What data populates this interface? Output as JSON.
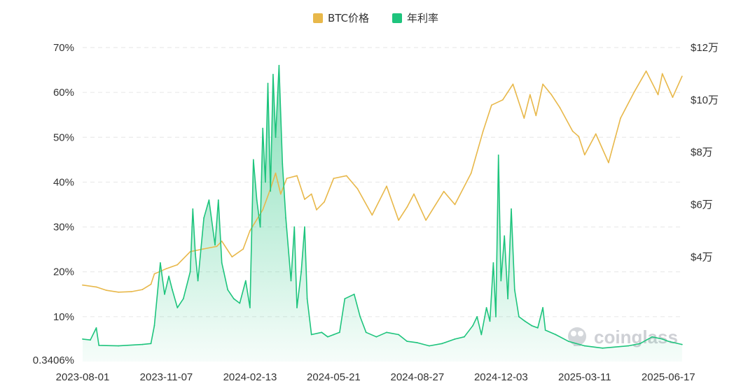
{
  "chart_data": {
    "type": "line",
    "legend": {
      "position": "top",
      "items": [
        {
          "name": "BTC价格",
          "color": "#e8b84a"
        },
        {
          "name": "年利率",
          "color": "#1ec47d"
        }
      ]
    },
    "x_tick_labels": [
      "2023-08-01",
      "2023-11-07",
      "2024-02-13",
      "2024-05-21",
      "2024-08-27",
      "2024-12-03",
      "2025-03-11",
      "2025-06-17"
    ],
    "x_range": [
      "2023-08-01",
      "2025-07-04"
    ],
    "y_left": {
      "range": [
        0,
        70
      ],
      "tick_labels": [
        "0.3406%",
        "10%",
        "20%",
        "30%",
        "40%",
        "50%",
        "60%",
        "70%"
      ],
      "tick_values": [
        0.3406,
        10,
        20,
        30,
        40,
        50,
        60,
        70
      ]
    },
    "y_right": {
      "range": [
        0,
        120000
      ],
      "tick_labels": [
        "$4万",
        "$6万",
        "$8万",
        "$10万",
        "$12万"
      ],
      "tick_values": [
        40000,
        60000,
        80000,
        100000,
        120000
      ]
    },
    "grid": "horizontal dashed",
    "series": [
      {
        "name": "BTC价格",
        "axis": "right",
        "color": "#e8b84a",
        "points": [
          [
            "2023-08-01",
            29200
          ],
          [
            "2023-08-17",
            28500
          ],
          [
            "2023-08-29",
            27200
          ],
          [
            "2023-09-12",
            26500
          ],
          [
            "2023-09-27",
            26700
          ],
          [
            "2023-10-10",
            27500
          ],
          [
            "2023-10-20",
            29500
          ],
          [
            "2023-10-24",
            33500
          ],
          [
            "2023-11-07",
            35500
          ],
          [
            "2023-11-20",
            37000
          ],
          [
            "2023-12-05",
            42000
          ],
          [
            "2023-12-20",
            43000
          ],
          [
            "2024-01-05",
            44000
          ],
          [
            "2024-01-11",
            46000
          ],
          [
            "2024-01-23",
            40000
          ],
          [
            "2024-02-05",
            43000
          ],
          [
            "2024-02-13",
            50000
          ],
          [
            "2024-02-28",
            58000
          ],
          [
            "2024-03-08",
            66000
          ],
          [
            "2024-03-14",
            72000
          ],
          [
            "2024-03-20",
            64000
          ],
          [
            "2024-03-27",
            70000
          ],
          [
            "2024-04-08",
            71000
          ],
          [
            "2024-04-17",
            62000
          ],
          [
            "2024-04-25",
            64000
          ],
          [
            "2024-05-01",
            58000
          ],
          [
            "2024-05-10",
            61000
          ],
          [
            "2024-05-21",
            70000
          ],
          [
            "2024-06-05",
            71000
          ],
          [
            "2024-06-18",
            66000
          ],
          [
            "2024-07-05",
            56000
          ],
          [
            "2024-07-22",
            67000
          ],
          [
            "2024-08-05",
            54000
          ],
          [
            "2024-08-15",
            59000
          ],
          [
            "2024-08-23",
            64000
          ],
          [
            "2024-09-06",
            54000
          ],
          [
            "2024-09-27",
            65000
          ],
          [
            "2024-10-10",
            60000
          ],
          [
            "2024-10-29",
            72000
          ],
          [
            "2024-11-12",
            88000
          ],
          [
            "2024-11-22",
            98000
          ],
          [
            "2024-12-05",
            100000
          ],
          [
            "2024-12-17",
            106000
          ],
          [
            "2024-12-30",
            93000
          ],
          [
            "2025-01-06",
            102000
          ],
          [
            "2025-01-13",
            94000
          ],
          [
            "2025-01-21",
            106000
          ],
          [
            "2025-01-31",
            102000
          ],
          [
            "2025-02-10",
            97000
          ],
          [
            "2025-02-25",
            88000
          ],
          [
            "2025-03-04",
            86000
          ],
          [
            "2025-03-11",
            79000
          ],
          [
            "2025-03-24",
            87000
          ],
          [
            "2025-04-08",
            76000
          ],
          [
            "2025-04-22",
            93000
          ],
          [
            "2025-05-08",
            103000
          ],
          [
            "2025-05-22",
            111000
          ],
          [
            "2025-06-05",
            102000
          ],
          [
            "2025-06-10",
            110000
          ],
          [
            "2025-06-22",
            101000
          ],
          [
            "2025-07-03",
            109000
          ]
        ]
      },
      {
        "name": "年利率",
        "axis": "left",
        "color": "#1ec47d",
        "fill": "area",
        "points": [
          [
            "2023-08-01",
            5
          ],
          [
            "2023-08-10",
            4.8
          ],
          [
            "2023-08-17",
            7.5
          ],
          [
            "2023-08-20",
            3.6
          ],
          [
            "2023-09-12",
            3.5
          ],
          [
            "2023-10-10",
            3.8
          ],
          [
            "2023-10-20",
            4
          ],
          [
            "2023-10-24",
            8
          ],
          [
            "2023-10-31",
            22
          ],
          [
            "2023-11-05",
            15
          ],
          [
            "2023-11-10",
            19
          ],
          [
            "2023-11-14",
            16
          ],
          [
            "2023-11-20",
            12
          ],
          [
            "2023-11-27",
            14
          ],
          [
            "2023-12-05",
            20
          ],
          [
            "2023-12-08",
            34
          ],
          [
            "2023-12-11",
            24
          ],
          [
            "2023-12-14",
            18
          ],
          [
            "2023-12-21",
            32
          ],
          [
            "2023-12-27",
            36
          ],
          [
            "2024-01-03",
            26
          ],
          [
            "2024-01-07",
            36
          ],
          [
            "2024-01-11",
            22
          ],
          [
            "2024-01-18",
            16
          ],
          [
            "2024-01-25",
            14
          ],
          [
            "2024-02-01",
            13
          ],
          [
            "2024-02-08",
            18
          ],
          [
            "2024-02-13",
            12
          ],
          [
            "2024-02-17",
            45
          ],
          [
            "2024-02-21",
            36
          ],
          [
            "2024-02-25",
            30
          ],
          [
            "2024-02-28",
            52
          ],
          [
            "2024-03-02",
            40
          ],
          [
            "2024-03-05",
            62
          ],
          [
            "2024-03-08",
            38
          ],
          [
            "2024-03-11",
            64
          ],
          [
            "2024-03-14",
            50
          ],
          [
            "2024-03-18",
            66
          ],
          [
            "2024-03-22",
            44
          ],
          [
            "2024-03-26",
            32
          ],
          [
            "2024-04-01",
            18
          ],
          [
            "2024-04-05",
            30
          ],
          [
            "2024-04-08",
            12
          ],
          [
            "2024-04-13",
            20
          ],
          [
            "2024-04-17",
            30
          ],
          [
            "2024-04-20",
            14
          ],
          [
            "2024-04-25",
            6
          ],
          [
            "2024-05-07",
            6.5
          ],
          [
            "2024-05-14",
            5.5
          ],
          [
            "2024-05-21",
            6
          ],
          [
            "2024-05-28",
            6.5
          ],
          [
            "2024-06-03",
            14
          ],
          [
            "2024-06-14",
            15
          ],
          [
            "2024-06-21",
            10
          ],
          [
            "2024-06-28",
            6.5
          ],
          [
            "2024-07-10",
            5.5
          ],
          [
            "2024-07-22",
            6.5
          ],
          [
            "2024-08-05",
            6
          ],
          [
            "2024-08-15",
            4.5
          ],
          [
            "2024-08-27",
            4.2
          ],
          [
            "2024-09-10",
            3.5
          ],
          [
            "2024-09-25",
            4
          ],
          [
            "2024-10-10",
            5
          ],
          [
            "2024-10-21",
            5.5
          ],
          [
            "2024-10-31",
            8
          ],
          [
            "2024-11-05",
            10
          ],
          [
            "2024-11-10",
            6
          ],
          [
            "2024-11-16",
            12
          ],
          [
            "2024-11-20",
            9
          ],
          [
            "2024-11-24",
            22
          ],
          [
            "2024-11-27",
            10
          ],
          [
            "2024-11-30",
            46
          ],
          [
            "2024-12-03",
            18
          ],
          [
            "2024-12-07",
            28
          ],
          [
            "2024-12-11",
            14
          ],
          [
            "2024-12-15",
            34
          ],
          [
            "2024-12-19",
            16
          ],
          [
            "2024-12-24",
            10
          ],
          [
            "2024-12-31",
            9
          ],
          [
            "2025-01-08",
            8
          ],
          [
            "2025-01-15",
            7.5
          ],
          [
            "2025-01-21",
            12
          ],
          [
            "2025-01-24",
            7
          ],
          [
            "2025-02-05",
            6
          ],
          [
            "2025-02-20",
            4.5
          ],
          [
            "2025-03-11",
            3.5
          ],
          [
            "2025-04-01",
            3
          ],
          [
            "2025-05-01",
            3.5
          ],
          [
            "2025-05-15",
            4
          ],
          [
            "2025-05-29",
            5.5
          ],
          [
            "2025-06-10",
            5
          ],
          [
            "2025-06-17",
            4.5
          ],
          [
            "2025-07-03",
            3.8
          ]
        ]
      }
    ],
    "watermark": "coinglass"
  }
}
